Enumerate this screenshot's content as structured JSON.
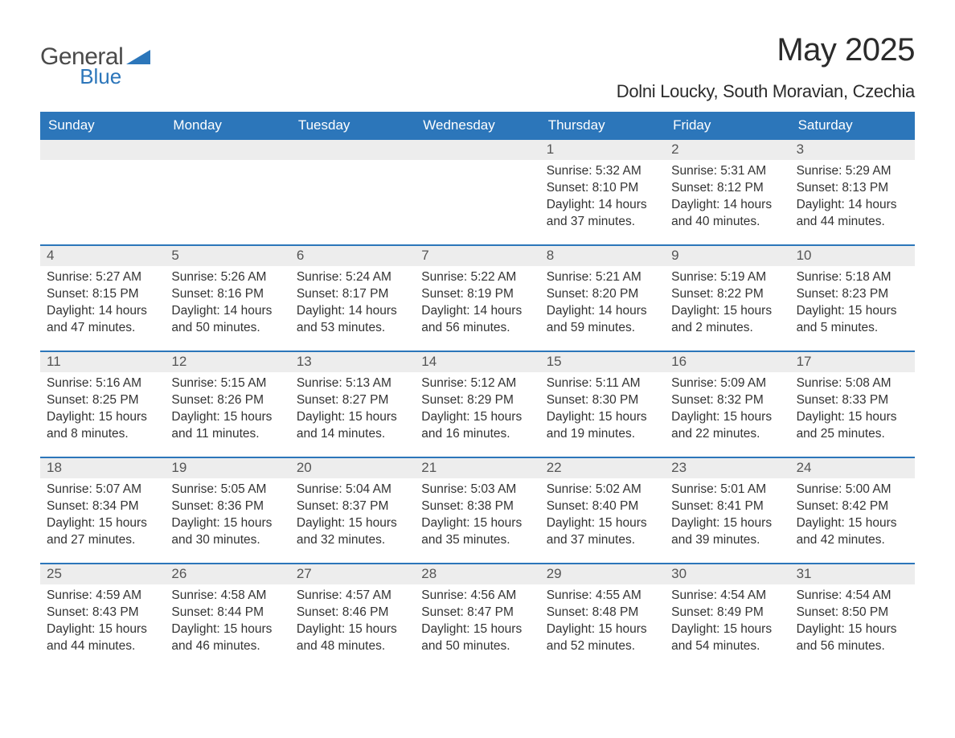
{
  "brand": {
    "name_part1": "General",
    "name_part2": "Blue",
    "color_gray": "#4a4a4a",
    "color_blue": "#2C76BA"
  },
  "title": "May 2025",
  "location": "Dolni Loucky, South Moravian, Czechia",
  "colors": {
    "header_bg": "#2C76BA",
    "header_text": "#ffffff",
    "daynum_bg": "#ededed",
    "daynum_text": "#555555",
    "body_text": "#333333",
    "row_border": "#2C76BA",
    "page_bg": "#ffffff"
  },
  "typography": {
    "title_fontsize": 40,
    "location_fontsize": 22,
    "weekday_fontsize": 17,
    "daynum_fontsize": 17,
    "body_fontsize": 15.5
  },
  "layout": {
    "columns": 7,
    "rows": 5,
    "first_weekday_index": 4
  },
  "weekdays": [
    "Sunday",
    "Monday",
    "Tuesday",
    "Wednesday",
    "Thursday",
    "Friday",
    "Saturday"
  ],
  "days": [
    {
      "n": 1,
      "sunrise": "5:32 AM",
      "sunset": "8:10 PM",
      "dl": "14 hours and 37 minutes."
    },
    {
      "n": 2,
      "sunrise": "5:31 AM",
      "sunset": "8:12 PM",
      "dl": "14 hours and 40 minutes."
    },
    {
      "n": 3,
      "sunrise": "5:29 AM",
      "sunset": "8:13 PM",
      "dl": "14 hours and 44 minutes."
    },
    {
      "n": 4,
      "sunrise": "5:27 AM",
      "sunset": "8:15 PM",
      "dl": "14 hours and 47 minutes."
    },
    {
      "n": 5,
      "sunrise": "5:26 AM",
      "sunset": "8:16 PM",
      "dl": "14 hours and 50 minutes."
    },
    {
      "n": 6,
      "sunrise": "5:24 AM",
      "sunset": "8:17 PM",
      "dl": "14 hours and 53 minutes."
    },
    {
      "n": 7,
      "sunrise": "5:22 AM",
      "sunset": "8:19 PM",
      "dl": "14 hours and 56 minutes."
    },
    {
      "n": 8,
      "sunrise": "5:21 AM",
      "sunset": "8:20 PM",
      "dl": "14 hours and 59 minutes."
    },
    {
      "n": 9,
      "sunrise": "5:19 AM",
      "sunset": "8:22 PM",
      "dl": "15 hours and 2 minutes."
    },
    {
      "n": 10,
      "sunrise": "5:18 AM",
      "sunset": "8:23 PM",
      "dl": "15 hours and 5 minutes."
    },
    {
      "n": 11,
      "sunrise": "5:16 AM",
      "sunset": "8:25 PM",
      "dl": "15 hours and 8 minutes."
    },
    {
      "n": 12,
      "sunrise": "5:15 AM",
      "sunset": "8:26 PM",
      "dl": "15 hours and 11 minutes."
    },
    {
      "n": 13,
      "sunrise": "5:13 AM",
      "sunset": "8:27 PM",
      "dl": "15 hours and 14 minutes."
    },
    {
      "n": 14,
      "sunrise": "5:12 AM",
      "sunset": "8:29 PM",
      "dl": "15 hours and 16 minutes."
    },
    {
      "n": 15,
      "sunrise": "5:11 AM",
      "sunset": "8:30 PM",
      "dl": "15 hours and 19 minutes."
    },
    {
      "n": 16,
      "sunrise": "5:09 AM",
      "sunset": "8:32 PM",
      "dl": "15 hours and 22 minutes."
    },
    {
      "n": 17,
      "sunrise": "5:08 AM",
      "sunset": "8:33 PM",
      "dl": "15 hours and 25 minutes."
    },
    {
      "n": 18,
      "sunrise": "5:07 AM",
      "sunset": "8:34 PM",
      "dl": "15 hours and 27 minutes."
    },
    {
      "n": 19,
      "sunrise": "5:05 AM",
      "sunset": "8:36 PM",
      "dl": "15 hours and 30 minutes."
    },
    {
      "n": 20,
      "sunrise": "5:04 AM",
      "sunset": "8:37 PM",
      "dl": "15 hours and 32 minutes."
    },
    {
      "n": 21,
      "sunrise": "5:03 AM",
      "sunset": "8:38 PM",
      "dl": "15 hours and 35 minutes."
    },
    {
      "n": 22,
      "sunrise": "5:02 AM",
      "sunset": "8:40 PM",
      "dl": "15 hours and 37 minutes."
    },
    {
      "n": 23,
      "sunrise": "5:01 AM",
      "sunset": "8:41 PM",
      "dl": "15 hours and 39 minutes."
    },
    {
      "n": 24,
      "sunrise": "5:00 AM",
      "sunset": "8:42 PM",
      "dl": "15 hours and 42 minutes."
    },
    {
      "n": 25,
      "sunrise": "4:59 AM",
      "sunset": "8:43 PM",
      "dl": "15 hours and 44 minutes."
    },
    {
      "n": 26,
      "sunrise": "4:58 AM",
      "sunset": "8:44 PM",
      "dl": "15 hours and 46 minutes."
    },
    {
      "n": 27,
      "sunrise": "4:57 AM",
      "sunset": "8:46 PM",
      "dl": "15 hours and 48 minutes."
    },
    {
      "n": 28,
      "sunrise": "4:56 AM",
      "sunset": "8:47 PM",
      "dl": "15 hours and 50 minutes."
    },
    {
      "n": 29,
      "sunrise": "4:55 AM",
      "sunset": "8:48 PM",
      "dl": "15 hours and 52 minutes."
    },
    {
      "n": 30,
      "sunrise": "4:54 AM",
      "sunset": "8:49 PM",
      "dl": "15 hours and 54 minutes."
    },
    {
      "n": 31,
      "sunrise": "4:54 AM",
      "sunset": "8:50 PM",
      "dl": "15 hours and 56 minutes."
    }
  ],
  "labels": {
    "sunrise": "Sunrise:",
    "sunset": "Sunset:",
    "daylight": "Daylight:"
  }
}
